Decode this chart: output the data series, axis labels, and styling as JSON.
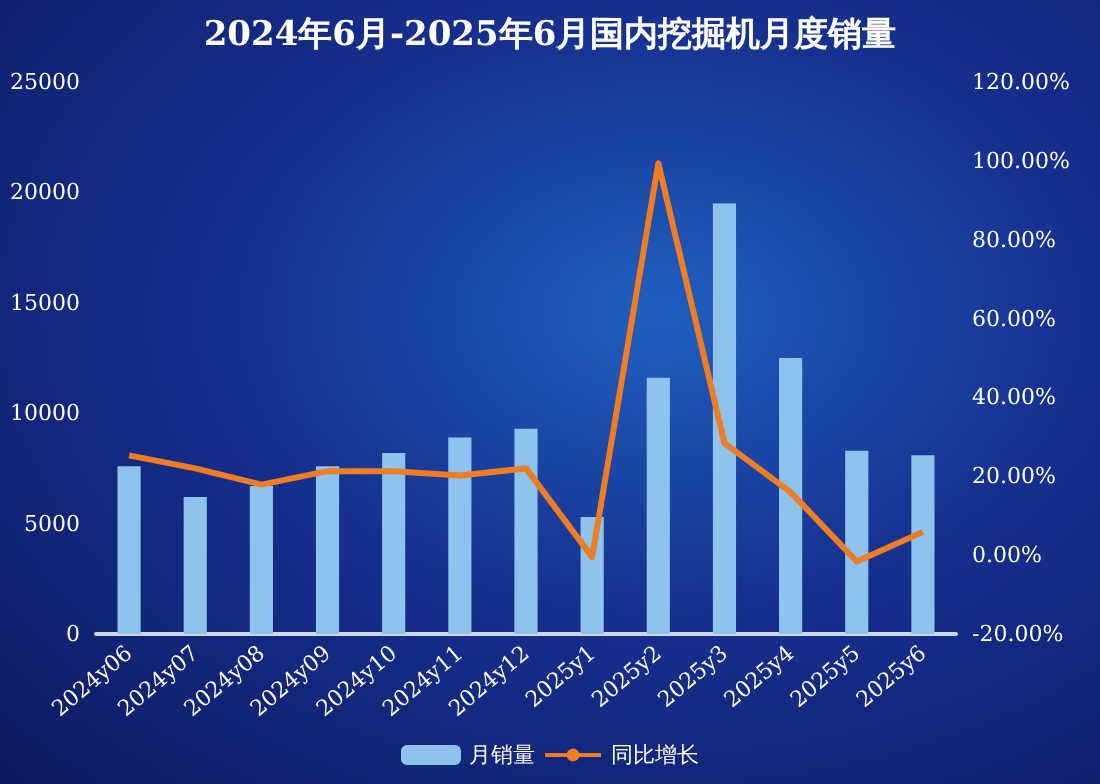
{
  "chart_data": {
    "type": "bar",
    "title": "2024年6月-2025年6月国内挖掘机月度销量",
    "categories": [
      "2024y06",
      "2024y07",
      "2024y08",
      "2024y09",
      "2024y10",
      "2024y11",
      "2024y12",
      "2025y1",
      "2025y2",
      "2025y3",
      "2025y4",
      "2025y5",
      "2025y6"
    ],
    "series": [
      {
        "name": "月销量",
        "color": "#8ec3ec",
        "values": [
          7600,
          6200,
          6700,
          7600,
          8200,
          8900,
          9300,
          5300,
          11600,
          19500,
          12500,
          8300,
          8100
        ]
      },
      {
        "name": "同比增长",
        "type": "line",
        "axis": "y2",
        "color": "#f07c24",
        "values": [
          25.3,
          22.0,
          17.9,
          21.3,
          21.3,
          20.2,
          22.0,
          -0.5,
          99.4,
          28.4,
          16.0,
          -1.6,
          5.9
        ]
      }
    ],
    "ylim": [
      0,
      25000
    ],
    "yticks": [
      0,
      5000,
      10000,
      15000,
      20000,
      25000
    ],
    "y2lim": [
      -20,
      120
    ],
    "y2ticks": [
      {
        "value": -20,
        "label": "-20.00%"
      },
      {
        "value": 0,
        "label": "0.00%"
      },
      {
        "value": 20,
        "label": "20.00%"
      },
      {
        "value": 40,
        "label": "40.00%"
      },
      {
        "value": 60,
        "label": "60.00%"
      },
      {
        "value": 80,
        "label": "80.00%"
      },
      {
        "value": 100,
        "label": "100.00%"
      },
      {
        "value": 120,
        "label": "120.00%"
      }
    ],
    "legend": "bottom",
    "grid": false,
    "marker": "none"
  }
}
